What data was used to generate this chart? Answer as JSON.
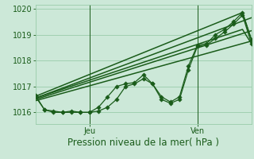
{
  "xlabel": "Pression niveau de la mer( hPa )",
  "bg_color": "#cce8d8",
  "grid_color": "#99ccaa",
  "line_color": "#1a5c1a",
  "ylim": [
    1015.55,
    1020.15
  ],
  "xlim": [
    0,
    48
  ],
  "xtick_positions": [
    12,
    36
  ],
  "xtick_labels": [
    "Jeu",
    "Ven"
  ],
  "ytick_positions": [
    1016,
    1017,
    1018,
    1019,
    1020
  ],
  "series_data": [
    {
      "x": [
        0,
        2,
        4,
        6,
        8,
        10,
        12,
        14,
        16,
        18,
        20,
        22,
        24,
        26,
        28,
        30,
        32,
        34,
        36,
        38,
        40,
        42,
        44,
        46,
        48
      ],
      "y": [
        1016.65,
        1016.1,
        1016.05,
        1016.0,
        1016.05,
        1016.0,
        1016.0,
        1016.05,
        1016.2,
        1016.5,
        1017.0,
        1017.1,
        1017.3,
        1017.1,
        1016.6,
        1016.4,
        1016.6,
        1017.8,
        1018.6,
        1018.65,
        1019.0,
        1019.2,
        1019.5,
        1019.85,
        1018.8
      ],
      "marker": true,
      "lw": 0.9
    },
    {
      "x": [
        0,
        2,
        4,
        6,
        8,
        10,
        12,
        14,
        16,
        18,
        20,
        22,
        24,
        26,
        28,
        30,
        32,
        34,
        36,
        38,
        40,
        42,
        44,
        46,
        48
      ],
      "y": [
        1016.6,
        1016.1,
        1016.0,
        1016.0,
        1016.0,
        1016.0,
        1016.0,
        1016.2,
        1016.6,
        1017.0,
        1017.1,
        1017.15,
        1017.45,
        1017.1,
        1016.5,
        1016.35,
        1016.5,
        1017.65,
        1018.55,
        1018.6,
        1018.85,
        1019.1,
        1019.4,
        1019.75,
        1018.65
      ],
      "marker": true,
      "lw": 0.9
    },
    {
      "x": [
        0,
        48
      ],
      "y": [
        1016.5,
        1019.15
      ],
      "marker": false,
      "lw": 1.1
    },
    {
      "x": [
        0,
        48
      ],
      "y": [
        1016.55,
        1019.65
      ],
      "marker": false,
      "lw": 1.1
    },
    {
      "x": [
        0,
        48
      ],
      "y": [
        1016.45,
        1018.75
      ],
      "marker": false,
      "lw": 1.1
    },
    {
      "x": [
        0,
        46,
        48
      ],
      "y": [
        1016.62,
        1019.85,
        1018.8
      ],
      "marker": false,
      "lw": 1.1
    },
    {
      "x": [
        0,
        46,
        48
      ],
      "y": [
        1016.55,
        1019.2,
        1018.65
      ],
      "marker": false,
      "lw": 1.1
    }
  ],
  "xlabel_fontsize": 8.5,
  "tick_fontsize": 7.0,
  "marker_size": 2.8
}
